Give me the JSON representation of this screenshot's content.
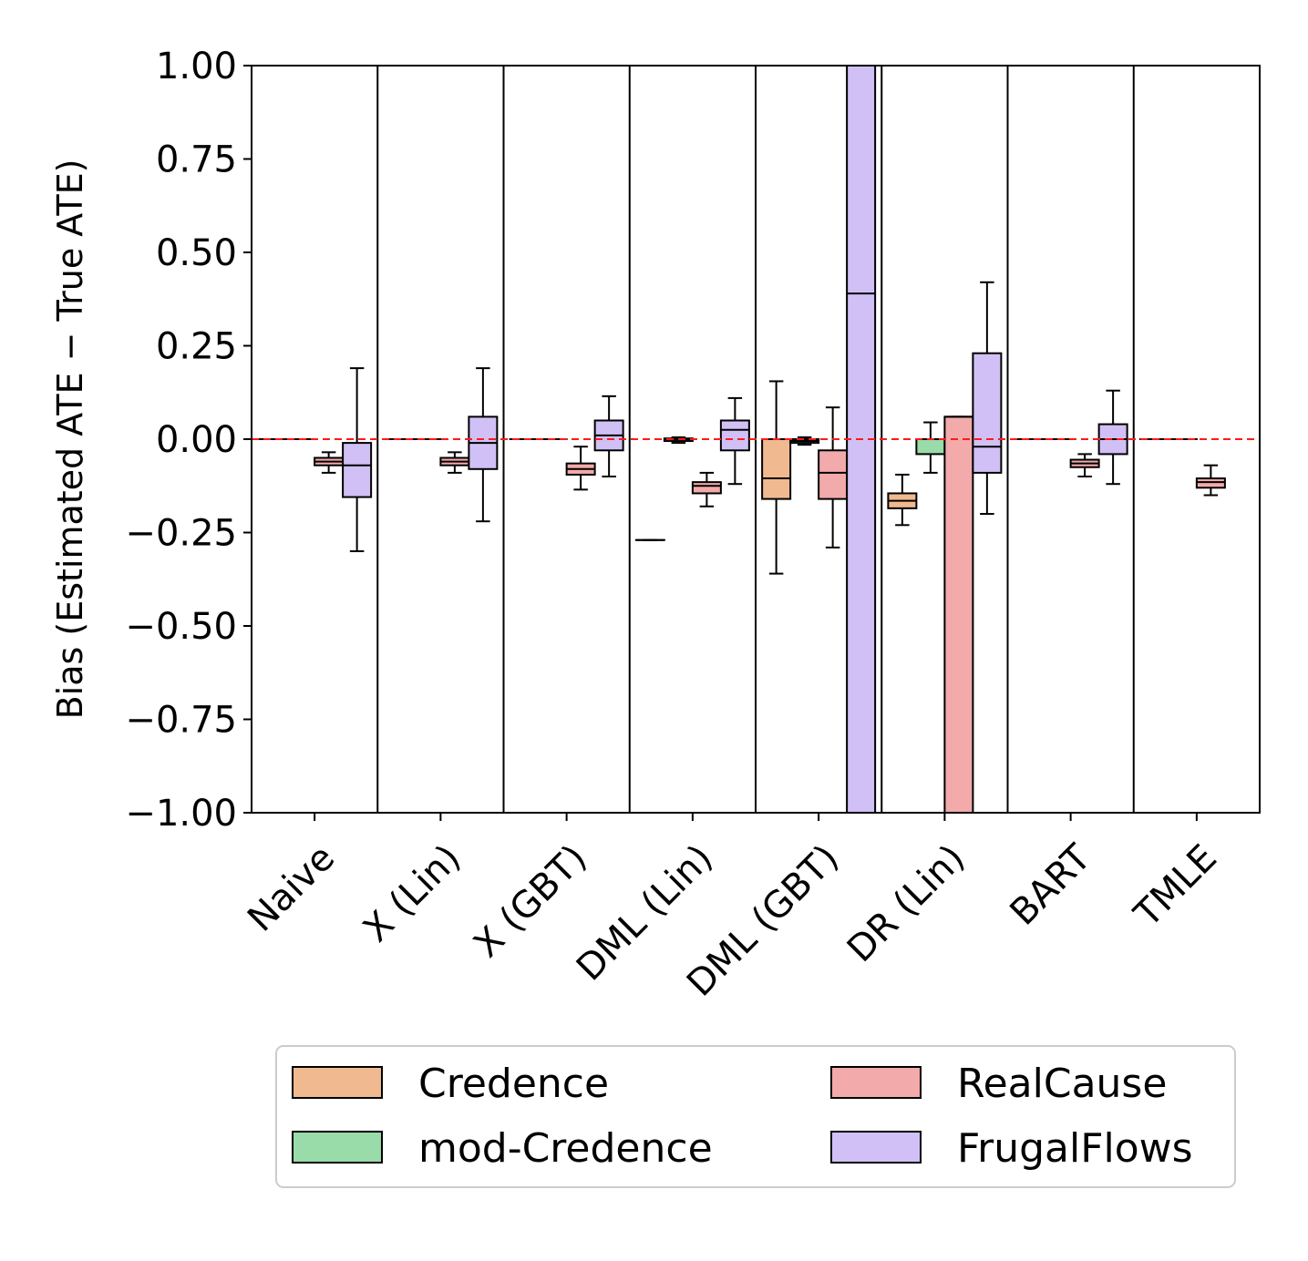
{
  "chart_data": {
    "type": "box",
    "title": "",
    "xlabel": "",
    "ylabel": "Bias (Estimated ATE − True ATE)",
    "ylim": [
      -1.0,
      1.0
    ],
    "yticks": [
      1.0,
      0.75,
      0.5,
      0.25,
      0.0,
      -0.25,
      -0.5,
      -0.75,
      -1.0
    ],
    "ytick_labels": [
      "1.00",
      "0.75",
      "0.50",
      "0.25",
      "0.00",
      "−0.25",
      "−0.50",
      "−0.75",
      "−1.00"
    ],
    "reference_line": 0.0,
    "categories": [
      "Naive",
      "X (Lin)",
      "X (GBT)",
      "DML (Lin)",
      "DML (GBT)",
      "DR (Lin)",
      "BART",
      "TMLE"
    ],
    "series": [
      {
        "name": "Credence",
        "color": "#f0b98f"
      },
      {
        "name": "mod-Credence",
        "color": "#99dba9"
      },
      {
        "name": "RealCause",
        "color": "#f2aaaa"
      },
      {
        "name": "FrugalFlows",
        "color": "#d1c0f5"
      }
    ],
    "boxes": [
      {
        "category": 0,
        "series": 0,
        "whislo": 0.0,
        "q1": 0.0,
        "med": 0.0,
        "q3": 0.0,
        "whishi": 0.0
      },
      {
        "category": 0,
        "series": 1,
        "whislo": 0.0,
        "q1": 0.0,
        "med": 0.0,
        "q3": 0.0,
        "whishi": 0.0
      },
      {
        "category": 0,
        "series": 2,
        "whislo": -0.09,
        "q1": -0.07,
        "med": -0.06,
        "q3": -0.05,
        "whishi": -0.035
      },
      {
        "category": 0,
        "series": 3,
        "whislo": -0.3,
        "q1": -0.155,
        "med": -0.07,
        "q3": -0.01,
        "whishi": 0.19
      },
      {
        "category": 1,
        "series": 0,
        "whislo": 0.0,
        "q1": 0.0,
        "med": 0.0,
        "q3": 0.0,
        "whishi": 0.0
      },
      {
        "category": 1,
        "series": 1,
        "whislo": 0.0,
        "q1": 0.0,
        "med": 0.0,
        "q3": 0.0,
        "whishi": 0.0
      },
      {
        "category": 1,
        "series": 2,
        "whislo": -0.09,
        "q1": -0.07,
        "med": -0.06,
        "q3": -0.05,
        "whishi": -0.035
      },
      {
        "category": 1,
        "series": 3,
        "whislo": -0.22,
        "q1": -0.08,
        "med": -0.01,
        "q3": 0.06,
        "whishi": 0.19
      },
      {
        "category": 2,
        "series": 0,
        "whislo": 0.0,
        "q1": 0.0,
        "med": 0.0,
        "q3": 0.0,
        "whishi": 0.0
      },
      {
        "category": 2,
        "series": 1,
        "whislo": 0.0,
        "q1": 0.0,
        "med": 0.0,
        "q3": 0.0,
        "whishi": 0.0
      },
      {
        "category": 2,
        "series": 2,
        "whislo": -0.135,
        "q1": -0.095,
        "med": -0.08,
        "q3": -0.065,
        "whishi": -0.02
      },
      {
        "category": 2,
        "series": 3,
        "whislo": -0.1,
        "q1": -0.03,
        "med": 0.01,
        "q3": 0.05,
        "whishi": 0.115
      },
      {
        "category": 3,
        "series": 0,
        "whislo": -0.27,
        "q1": -0.27,
        "med": -0.27,
        "q3": -0.27,
        "whishi": -0.27
      },
      {
        "category": 3,
        "series": 1,
        "whislo": -0.01,
        "q1": -0.005,
        "med": 0.0,
        "q3": 0.002,
        "whishi": 0.005
      },
      {
        "category": 3,
        "series": 2,
        "whislo": -0.18,
        "q1": -0.145,
        "med": -0.125,
        "q3": -0.115,
        "whishi": -0.09
      },
      {
        "category": 3,
        "series": 3,
        "whislo": -0.12,
        "q1": -0.03,
        "med": 0.025,
        "q3": 0.05,
        "whishi": 0.11
      },
      {
        "category": 4,
        "series": 0,
        "whislo": -0.36,
        "q1": -0.16,
        "med": -0.105,
        "q3": 0.0,
        "whishi": 0.155
      },
      {
        "category": 4,
        "series": 1,
        "whislo": -0.015,
        "q1": -0.01,
        "med": -0.005,
        "q3": 0.0,
        "whishi": 0.005
      },
      {
        "category": 4,
        "series": 2,
        "whislo": -0.29,
        "q1": -0.16,
        "med": -0.09,
        "q3": -0.03,
        "whishi": 0.085
      },
      {
        "category": 4,
        "series": 3,
        "whislo": -1.0,
        "q1": -1.0,
        "med": 0.39,
        "q3": 1.0,
        "whishi": 1.0
      },
      {
        "category": 5,
        "series": 0,
        "whislo": -0.23,
        "q1": -0.185,
        "med": -0.165,
        "q3": -0.145,
        "whishi": -0.095
      },
      {
        "category": 5,
        "series": 1,
        "whislo": -0.09,
        "q1": -0.04,
        "med": 0.0,
        "q3": 0.0,
        "whishi": 0.045
      },
      {
        "category": 5,
        "series": 2,
        "whislo": -1.0,
        "q1": -1.0,
        "med": 0.06,
        "q3": 0.06,
        "whishi": 0.06
      },
      {
        "category": 5,
        "series": 3,
        "whislo": -0.2,
        "q1": -0.09,
        "med": -0.02,
        "q3": 0.23,
        "whishi": 0.42
      },
      {
        "category": 6,
        "series": 0,
        "whislo": 0.0,
        "q1": 0.0,
        "med": 0.0,
        "q3": 0.0,
        "whishi": 0.0
      },
      {
        "category": 6,
        "series": 1,
        "whislo": 0.0,
        "q1": 0.0,
        "med": 0.0,
        "q3": 0.0,
        "whishi": 0.0
      },
      {
        "category": 6,
        "series": 2,
        "whislo": -0.1,
        "q1": -0.075,
        "med": -0.065,
        "q3": -0.055,
        "whishi": -0.04
      },
      {
        "category": 6,
        "series": 3,
        "whislo": -0.12,
        "q1": -0.04,
        "med": 0.0,
        "q3": 0.04,
        "whishi": 0.13
      },
      {
        "category": 7,
        "series": 0,
        "whislo": 0.0,
        "q1": 0.0,
        "med": 0.0,
        "q3": 0.0,
        "whishi": 0.0
      },
      {
        "category": 7,
        "series": 1,
        "whislo": 0.0,
        "q1": 0.0,
        "med": 0.0,
        "q3": 0.0,
        "whishi": 0.0
      },
      {
        "category": 7,
        "series": 2,
        "whislo": -0.15,
        "q1": -0.13,
        "med": -0.115,
        "q3": -0.105,
        "whishi": -0.07
      }
    ],
    "legend": {
      "position": "bottom",
      "columns": 2
    }
  }
}
